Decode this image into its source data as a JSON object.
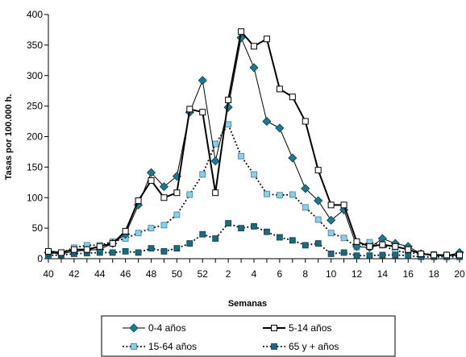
{
  "chart_data": {
    "type": "line",
    "xlabel": "Semanas",
    "ylabel": "Tasas por 100.000 h.",
    "ylim": [
      0,
      400
    ],
    "yticks": [
      0,
      50,
      100,
      150,
      200,
      250,
      300,
      350,
      400
    ],
    "categories": [
      "40",
      "41",
      "42",
      "43",
      "44",
      "45",
      "46",
      "47",
      "48",
      "49",
      "50",
      "51",
      "52",
      "1",
      "2",
      "3",
      "4",
      "5",
      "6",
      "7",
      "8",
      "9",
      "10",
      "11",
      "12",
      "13",
      "14",
      "15",
      "16",
      "17",
      "18",
      "19",
      "20"
    ],
    "xtick_labels": [
      "40",
      "",
      "42",
      "",
      "44",
      "",
      "46",
      "",
      "48",
      "",
      "50",
      "",
      "52",
      "",
      "2",
      "",
      "4",
      "",
      "6",
      "",
      "8",
      "",
      "10",
      "",
      "12",
      "",
      "14",
      "",
      "16",
      "",
      "18",
      "",
      "20"
    ],
    "legend_position": "bottom",
    "grid": false,
    "series": [
      {
        "name": "0-4 años",
        "marker": "diamond",
        "line": "solid-thin",
        "color": "#1a7a94",
        "values": [
          10,
          8,
          12,
          14,
          15,
          25,
          40,
          88,
          141,
          118,
          135,
          240,
          292,
          160,
          248,
          362,
          313,
          225,
          214,
          165,
          115,
          95,
          63,
          80,
          20,
          18,
          33,
          25,
          20,
          8,
          5,
          5,
          10
        ]
      },
      {
        "name": "5-14 años",
        "marker": "square-open",
        "line": "solid-thick",
        "color": "#000000",
        "values": [
          12,
          10,
          15,
          15,
          20,
          25,
          45,
          95,
          128,
          100,
          108,
          245,
          240,
          108,
          260,
          372,
          348,
          360,
          278,
          265,
          225,
          145,
          88,
          88,
          28,
          20,
          23,
          20,
          15,
          8,
          6,
          6,
          6
        ]
      },
      {
        "name": "15-64 años",
        "marker": "square-light",
        "line": "dotted",
        "color": "#8ecfe8",
        "values": [
          8,
          10,
          18,
          22,
          22,
          28,
          33,
          42,
          50,
          55,
          72,
          105,
          138,
          188,
          220,
          168,
          138,
          106,
          104,
          105,
          84,
          64,
          42,
          34,
          19,
          27,
          22,
          13,
          10,
          8,
          7,
          5,
          5
        ]
      },
      {
        "name": "65 y + años",
        "marker": "square-dark",
        "line": "dotted",
        "color": "#1a6a80",
        "values": [
          5,
          6,
          8,
          9,
          10,
          10,
          12,
          10,
          17,
          12,
          17,
          25,
          40,
          33,
          58,
          50,
          53,
          44,
          35,
          30,
          22,
          25,
          8,
          10,
          5,
          5,
          6,
          6,
          5,
          3,
          3,
          3,
          3
        ]
      }
    ]
  }
}
